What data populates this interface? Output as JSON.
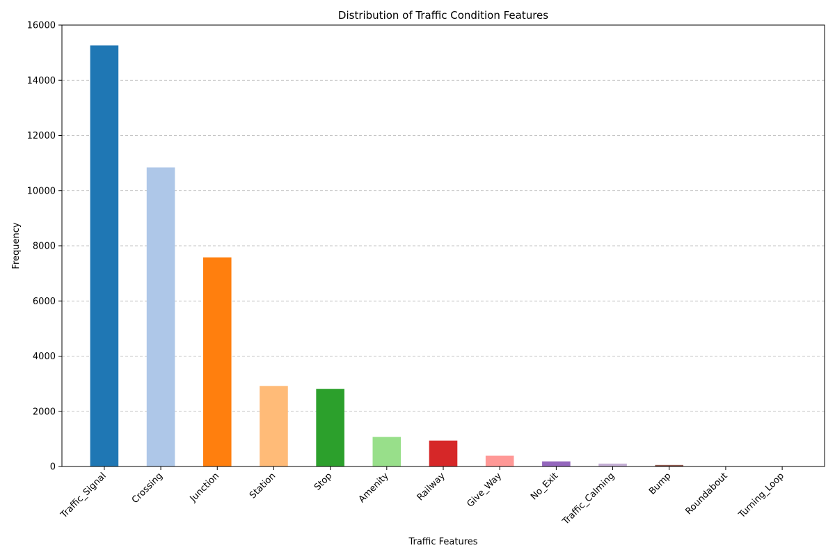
{
  "chart_data": {
    "type": "bar",
    "title": "Distribution of Traffic Condition Features",
    "xlabel": "Traffic Features",
    "ylabel": "Frequency",
    "ylim": [
      0,
      16000
    ],
    "yticks": [
      0,
      2000,
      4000,
      6000,
      8000,
      10000,
      12000,
      14000,
      16000
    ],
    "grid": "y-dashed",
    "categories": [
      "Traffic_Signal",
      "Crossing",
      "Junction",
      "Station",
      "Stop",
      "Amenity",
      "Railway",
      "Give_Way",
      "No_Exit",
      "Traffic_Calming",
      "Bump",
      "Roundabout",
      "Turning_Loop"
    ],
    "values": [
      15260,
      10840,
      7580,
      2920,
      2810,
      1070,
      940,
      390,
      185,
      105,
      55,
      5,
      0
    ],
    "colors": [
      "#1f77b4",
      "#aec7e8",
      "#ff7f0e",
      "#ffbb78",
      "#2ca02c",
      "#98df8a",
      "#d62728",
      "#ff9896",
      "#9467bd",
      "#c5b0d5",
      "#8c564b",
      "#c49c94",
      "#e377c2"
    ]
  }
}
